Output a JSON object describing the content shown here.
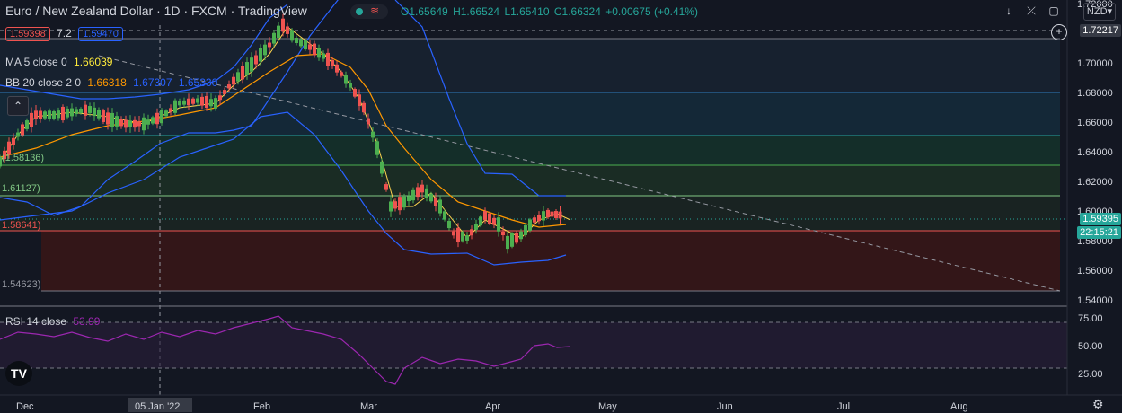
{
  "header": {
    "symbol_title": "Euro / New Zealand Dollar",
    "interval": "1D",
    "exchange": "FXCM",
    "source": "TradingView",
    "ohlc": {
      "o": "O1.65649",
      "h": "H1.66524",
      "l": "L1.65410",
      "c": "C1.66324",
      "chg": "+0.00675 (+0.41%)"
    },
    "currency": "NZD"
  },
  "order_panel": {
    "sell_price": "1.59398",
    "spread": "7.2",
    "buy_price": "1.59470"
  },
  "indicators": {
    "ma": {
      "label": "MA 5 close 0",
      "value": "1.66039"
    },
    "bb": {
      "label": "BB 20 close 2 0",
      "v1": "1.66318",
      "v2": "1.67307",
      "v3": "1.65330"
    },
    "rsi": {
      "label": "RSI 14 close",
      "value": "53.99"
    }
  },
  "price_axis": {
    "ticks": [
      "1.72000",
      "1.70000",
      "1.68000",
      "1.66000",
      "1.64000",
      "1.62000",
      "1.60000",
      "1.58000",
      "1.56000",
      "1.54000"
    ],
    "crosshair_price": "1.72217",
    "last_price": "1.59395",
    "countdown": "22:15:21"
  },
  "fib_labels": [
    "(1.58136)",
    "1.61127)",
    "1.58641)",
    "1.54623)"
  ],
  "rsi_axis": {
    "ticks": [
      "75.00",
      "50.00",
      "25.00"
    ]
  },
  "time_axis": {
    "ticks": [
      "Dec",
      "Feb",
      "Mar",
      "Apr",
      "May",
      "Jun",
      "Jul",
      "Aug"
    ],
    "crosshair_date": "05 Jan '22"
  },
  "colors": {
    "bg": "#131722",
    "up": "#4caf50",
    "down": "#ef5350",
    "bb": "#2962ff",
    "ma": "#ff9800",
    "rsi": "#9c27b0"
  }
}
